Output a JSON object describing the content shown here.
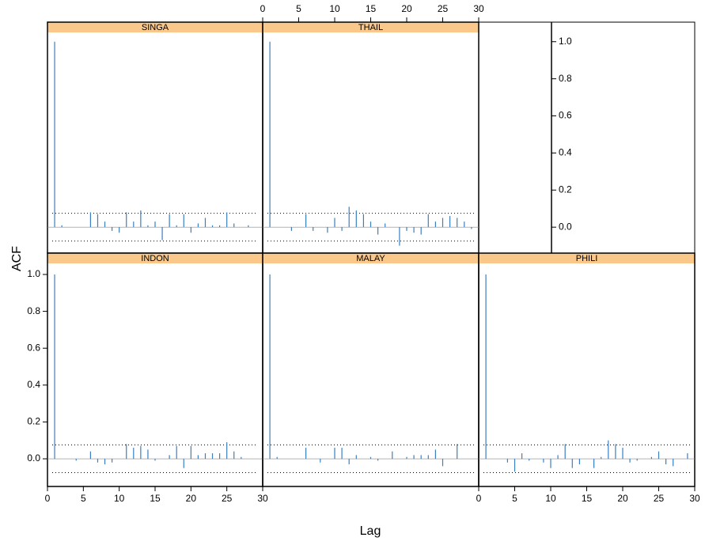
{
  "chart_data": [
    {
      "type": "bar",
      "title": "SINGA",
      "xlabel": "Lag",
      "ylabel": "ACF",
      "color": "#3a7fc1",
      "strip_color": "#f9c88a",
      "x": [
        1,
        2,
        3,
        4,
        5,
        6,
        7,
        8,
        9,
        10,
        11,
        12,
        13,
        14,
        15,
        16,
        17,
        18,
        19,
        20,
        21,
        22,
        23,
        24,
        25,
        26,
        27,
        28,
        29
      ],
      "values": [
        1.0,
        0.01,
        0.0,
        0.0,
        0.0,
        0.08,
        0.07,
        0.03,
        -0.02,
        -0.03,
        0.08,
        0.03,
        0.09,
        0.01,
        0.03,
        -0.07,
        0.07,
        0.01,
        0.07,
        -0.03,
        0.02,
        0.05,
        0.01,
        0.01,
        0.08,
        0.02,
        0.0,
        0.01,
        0.0
      ],
      "conf_limit": 0.075,
      "xlim": [
        0,
        30
      ],
      "ylim": [
        -0.14,
        1.05
      ]
    },
    {
      "type": "bar",
      "title": "THAIL",
      "color": "#3a7fc1",
      "strip_color": "#f9c88a",
      "x": [
        1,
        2,
        3,
        4,
        5,
        6,
        7,
        8,
        9,
        10,
        11,
        12,
        13,
        14,
        15,
        16,
        17,
        18,
        19,
        20,
        21,
        22,
        23,
        24,
        25,
        26,
        27,
        28,
        29
      ],
      "values": [
        1.0,
        0.0,
        0.0,
        -0.02,
        0.0,
        0.07,
        -0.02,
        0.0,
        -0.03,
        0.05,
        -0.02,
        0.11,
        0.09,
        0.07,
        0.03,
        -0.04,
        0.02,
        0.0,
        -0.1,
        -0.02,
        -0.03,
        -0.04,
        0.07,
        0.03,
        0.05,
        0.06,
        0.05,
        0.03,
        -0.01
      ],
      "conf_limit": 0.075,
      "xlim": [
        0,
        30
      ],
      "ylim": [
        -0.14,
        1.05
      ],
      "xticks": [
        0,
        5,
        10,
        15,
        20,
        25,
        30
      ],
      "yticks": [
        {
          "value": 0,
          "label": "0.0"
        },
        {
          "value": 0.2,
          "label": "0.2"
        },
        {
          "value": 0.4,
          "label": "0.4"
        },
        {
          "value": 0.6,
          "label": "0.6"
        },
        {
          "value": 0.8,
          "label": "0.8"
        },
        {
          "value": 1,
          "label": "1.0"
        }
      ]
    },
    {
      "type": "bar",
      "title": "INDON",
      "color": "#3a7fc1",
      "strip_color": "#f9c88a",
      "x": [
        1,
        2,
        3,
        4,
        5,
        6,
        7,
        8,
        9,
        10,
        11,
        12,
        13,
        14,
        15,
        16,
        17,
        18,
        19,
        20,
        21,
        22,
        23,
        24,
        25,
        26,
        27,
        28,
        29
      ],
      "values": [
        1.0,
        0.0,
        0.0,
        -0.01,
        0.0,
        0.04,
        -0.02,
        -0.03,
        -0.02,
        0.0,
        0.08,
        0.06,
        0.07,
        0.05,
        -0.01,
        0.0,
        0.02,
        0.07,
        -0.05,
        0.07,
        0.02,
        0.03,
        0.03,
        0.03,
        0.09,
        0.04,
        0.01,
        0.0,
        0.0
      ],
      "conf_limit": 0.075,
      "xlim": [
        0,
        30
      ],
      "ylim": [
        -0.15,
        1.06
      ],
      "xticks": [
        0,
        5,
        10,
        15,
        20,
        25,
        30
      ],
      "yticks": [
        {
          "value": 0,
          "label": "0.0"
        },
        {
          "value": 0.2,
          "label": "0.2"
        },
        {
          "value": 0.4,
          "label": "0.4"
        },
        {
          "value": 0.6,
          "label": "0.6"
        },
        {
          "value": 0.8,
          "label": "0.8"
        },
        {
          "value": 1,
          "label": "1.0"
        }
      ]
    },
    {
      "type": "bar",
      "title": "MALAY",
      "color": "#3a7fc1",
      "strip_color": "#f9c88a",
      "x": [
        1,
        2,
        3,
        4,
        5,
        6,
        7,
        8,
        9,
        10,
        11,
        12,
        13,
        14,
        15,
        16,
        17,
        18,
        19,
        20,
        21,
        22,
        23,
        24,
        25,
        26,
        27,
        28,
        29
      ],
      "values": [
        1.0,
        0.01,
        0.0,
        0.0,
        0.0,
        0.06,
        0.0,
        -0.02,
        0.0,
        0.06,
        0.06,
        -0.03,
        0.02,
        0.0,
        0.01,
        -0.01,
        0.0,
        0.04,
        0.0,
        0.01,
        0.02,
        0.02,
        0.02,
        0.05,
        -0.04,
        0.0,
        0.08,
        0.0,
        0.0
      ],
      "conf_limit": 0.075,
      "xlim": [
        0,
        30
      ],
      "ylim": [
        -0.15,
        1.06
      ]
    },
    {
      "type": "bar",
      "title": "PHILI",
      "color": "#3a7fc1",
      "strip_color": "#f9c88a",
      "x": [
        1,
        2,
        3,
        4,
        5,
        6,
        7,
        8,
        9,
        10,
        11,
        12,
        13,
        14,
        15,
        16,
        17,
        18,
        19,
        20,
        21,
        22,
        23,
        24,
        25,
        26,
        27,
        28,
        29
      ],
      "values": [
        1.0,
        0.0,
        0.0,
        -0.02,
        -0.07,
        0.03,
        -0.01,
        0.0,
        -0.02,
        -0.05,
        0.02,
        0.08,
        -0.05,
        -0.03,
        0.0,
        -0.05,
        0.01,
        0.1,
        0.08,
        0.06,
        -0.02,
        -0.01,
        0.0,
        0.01,
        0.04,
        -0.03,
        -0.04,
        0.0,
        0.03
      ],
      "conf_limit": 0.075,
      "xlim": [
        0,
        30
      ],
      "ylim": [
        -0.15,
        1.06
      ],
      "xticks": [
        0,
        5,
        10,
        15,
        20,
        25,
        30
      ]
    }
  ]
}
